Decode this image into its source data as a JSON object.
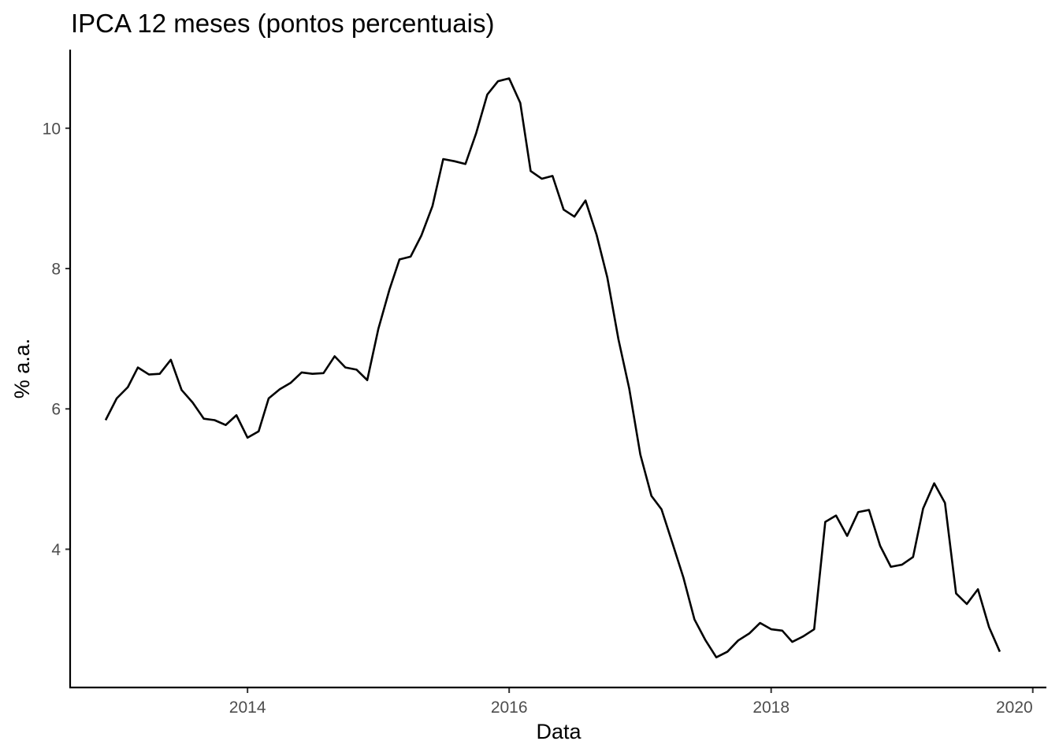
{
  "chart_data": {
    "type": "line",
    "title": "IPCA 12 meses (pontos percentuais)",
    "xlabel": "Data",
    "ylabel": "% a.a.",
    "x_type": "date",
    "xlim": [
      "2012-08-24",
      "2020-02-08"
    ],
    "ylim": [
      2.03,
      11.12
    ],
    "x_ticks": [
      {
        "value": "2014-01-01",
        "label": "2014"
      },
      {
        "value": "2016-01-01",
        "label": "2016"
      },
      {
        "value": "2018-01-01",
        "label": "2018"
      },
      {
        "value": "2020-01-01",
        "label": "2020"
      }
    ],
    "y_ticks": [
      {
        "value": 4,
        "label": "4"
      },
      {
        "value": 6,
        "label": "6"
      },
      {
        "value": 8,
        "label": "8"
      },
      {
        "value": 10,
        "label": "10"
      }
    ],
    "grid": false,
    "legend": "none",
    "line_color": "#000000",
    "series": [
      {
        "x": [
          "2012-12-01",
          "2013-01-01",
          "2013-02-01",
          "2013-03-01",
          "2013-04-01",
          "2013-05-01",
          "2013-06-01",
          "2013-07-01",
          "2013-08-01",
          "2013-09-01",
          "2013-10-01",
          "2013-11-01",
          "2013-12-01",
          "2014-01-01",
          "2014-02-01",
          "2014-03-01",
          "2014-04-01",
          "2014-05-01",
          "2014-06-01",
          "2014-07-01",
          "2014-08-01",
          "2014-09-01",
          "2014-10-01",
          "2014-11-01",
          "2014-12-01",
          "2015-01-01",
          "2015-02-01",
          "2015-03-01",
          "2015-04-01",
          "2015-05-01",
          "2015-06-01",
          "2015-07-01",
          "2015-08-01",
          "2015-09-01",
          "2015-10-01",
          "2015-11-01",
          "2015-12-01",
          "2016-01-01",
          "2016-02-01",
          "2016-03-01",
          "2016-04-01",
          "2016-05-01",
          "2016-06-01",
          "2016-07-01",
          "2016-08-01",
          "2016-09-01",
          "2016-10-01",
          "2016-11-01",
          "2016-12-01",
          "2017-01-01",
          "2017-02-01",
          "2017-03-01",
          "2017-04-01",
          "2017-05-01",
          "2017-06-01",
          "2017-07-01",
          "2017-08-01",
          "2017-09-01",
          "2017-10-01",
          "2017-11-01",
          "2017-12-01",
          "2018-01-01",
          "2018-02-01",
          "2018-03-01",
          "2018-04-01",
          "2018-05-01",
          "2018-06-01",
          "2018-07-01",
          "2018-08-01",
          "2018-09-01",
          "2018-10-01",
          "2018-11-01",
          "2018-12-01",
          "2019-01-01",
          "2019-02-01",
          "2019-03-01",
          "2019-04-01",
          "2019-05-01",
          "2019-06-01",
          "2019-07-01",
          "2019-08-01",
          "2019-09-01",
          "2019-10-01"
        ],
        "y": [
          5.84,
          6.15,
          6.31,
          6.59,
          6.49,
          6.5,
          6.7,
          6.27,
          6.09,
          5.86,
          5.84,
          5.77,
          5.91,
          5.59,
          5.68,
          6.15,
          6.28,
          6.37,
          6.52,
          6.5,
          6.51,
          6.75,
          6.59,
          6.56,
          6.41,
          7.14,
          7.7,
          8.13,
          8.17,
          8.47,
          8.89,
          9.56,
          9.53,
          9.49,
          9.93,
          10.48,
          10.67,
          10.71,
          10.36,
          9.39,
          9.28,
          9.32,
          8.84,
          8.74,
          8.97,
          8.48,
          7.87,
          6.99,
          6.29,
          5.35,
          4.76,
          4.57,
          4.08,
          3.6,
          3.0,
          2.71,
          2.46,
          2.54,
          2.7,
          2.8,
          2.95,
          2.86,
          2.84,
          2.68,
          2.76,
          2.86,
          4.39,
          4.48,
          4.19,
          4.53,
          4.56,
          4.05,
          3.75,
          3.78,
          3.89,
          4.58,
          4.94,
          4.66,
          3.37,
          3.22,
          3.43,
          2.89,
          2.54
        ]
      }
    ]
  }
}
